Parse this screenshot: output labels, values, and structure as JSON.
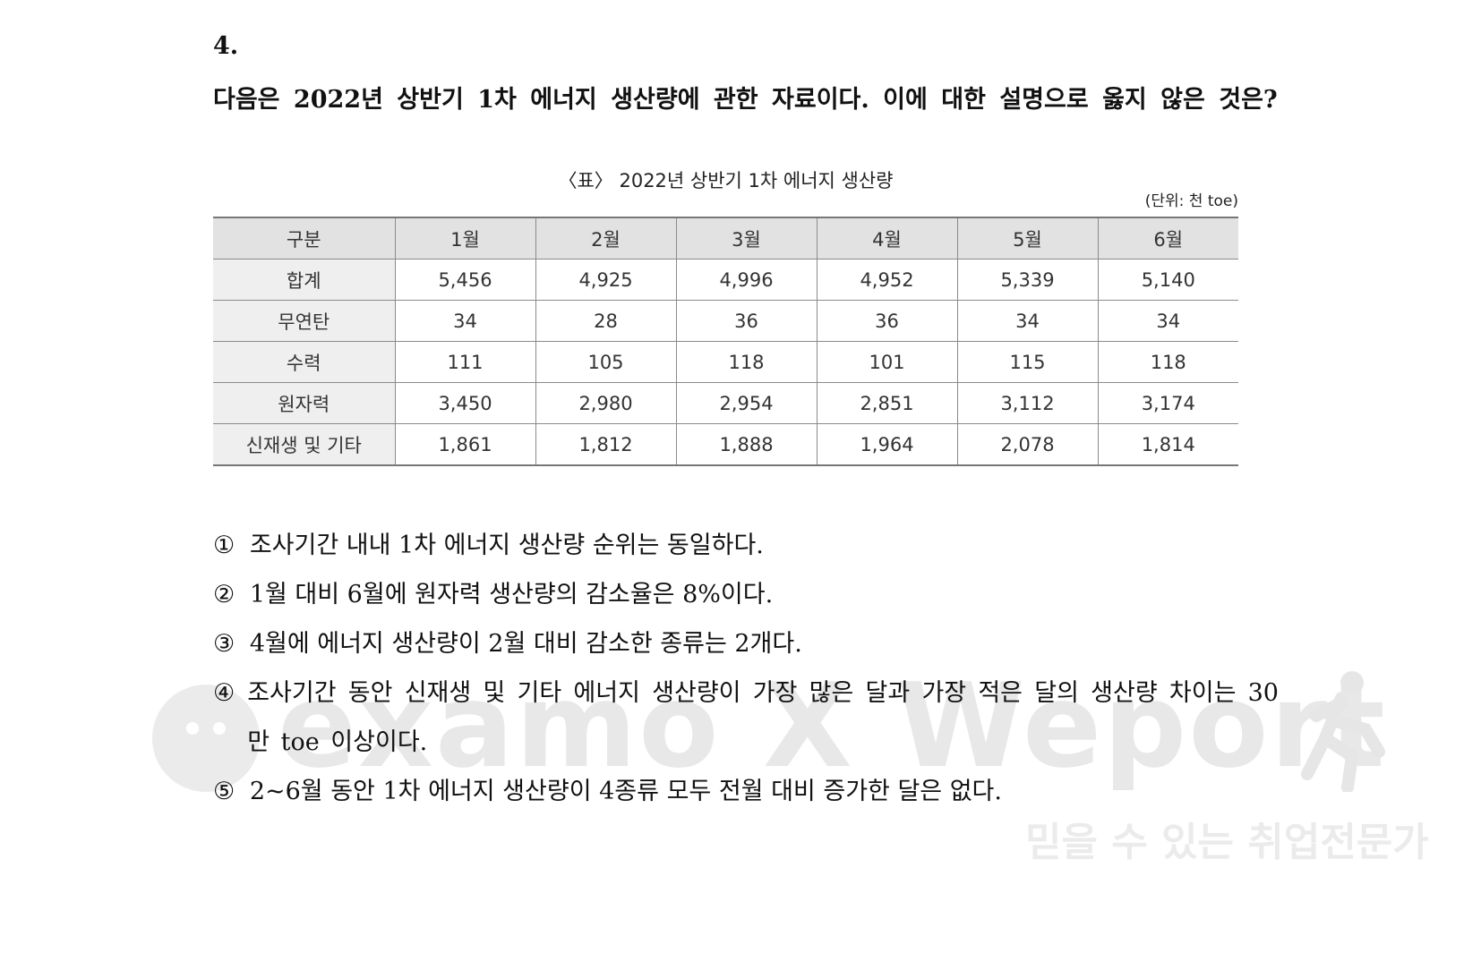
{
  "question": {
    "number": "4.",
    "text": "다음은 2022년 상반기 1차 에너지 생산량에 관한 자료이다. 이에 대한 설명으로 옳지 않은 것은?"
  },
  "table": {
    "caption": "〈표〉 2022년 상반기 1차 에너지 생산량",
    "unit": "(단위: 천 toe)",
    "headers": [
      "구분",
      "1월",
      "2월",
      "3월",
      "4월",
      "5월",
      "6월"
    ],
    "rows": [
      {
        "label": "합계",
        "values": [
          "5,456",
          "4,925",
          "4,996",
          "4,952",
          "5,339",
          "5,140"
        ]
      },
      {
        "label": "무연탄",
        "values": [
          "34",
          "28",
          "36",
          "36",
          "34",
          "34"
        ]
      },
      {
        "label": "수력",
        "values": [
          "111",
          "105",
          "118",
          "101",
          "115",
          "118"
        ]
      },
      {
        "label": "원자력",
        "values": [
          "3,450",
          "2,980",
          "2,954",
          "2,851",
          "3,112",
          "3,174"
        ]
      },
      {
        "label": "신재생 및 기타",
        "values": [
          "1,861",
          "1,812",
          "1,888",
          "1,964",
          "2,078",
          "1,814"
        ]
      }
    ]
  },
  "options": [
    {
      "mark": "①",
      "text": "조사기간 내내 1차 에너지 생산량 순위는 동일하다."
    },
    {
      "mark": "②",
      "text": "1월 대비 6월에 원자력 생산량의 감소율은 8%이다."
    },
    {
      "mark": "③",
      "text": "4월에 에너지 생산량이 2월 대비 감소한 종류는 2개다."
    },
    {
      "mark": "④",
      "text": "조사기간 동안 신재생 및 기타 에너지 생산량이 가장 많은 달과 가장 적은 달의 생산량 차이는 30만 toe 이상이다."
    },
    {
      "mark": "⑤",
      "text": "2~6월 동안 1차 에너지 생산량이 4종류 모두 전월 대비 증가한 달은 없다."
    }
  ],
  "watermark": {
    "brand": "examo X Weport",
    "tagline": "믿을 수 있는 취업전문가"
  }
}
